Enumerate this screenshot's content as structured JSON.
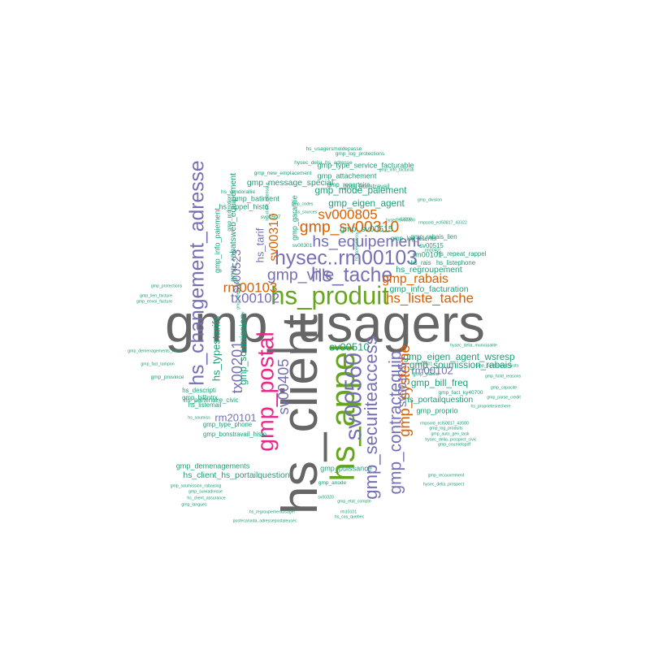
{
  "chart_data": {
    "type": "wordcloud",
    "palette": {
      "gray": "#666666",
      "green": "#66a61e",
      "purple": "#7570b3",
      "orange": "#d95f02",
      "magenta": "#e7298a",
      "teal": "#1b9e77"
    },
    "words": [
      {
        "text": "gmp_usagers",
        "size": 50,
        "color": "gray"
      },
      {
        "text": "hs_client",
        "size": 48,
        "color": "gray"
      },
      {
        "text": "hs_appel",
        "size": 32,
        "color": "green"
      },
      {
        "text": "hs_produit",
        "size": 24,
        "color": "green"
      },
      {
        "text": "gmp_postal",
        "size": 22,
        "color": "magenta"
      },
      {
        "text": "sv00560",
        "size": 22,
        "color": "purple"
      },
      {
        "text": "hysec..rm00103",
        "size": 19,
        "color": "purple"
      },
      {
        "text": "hs_changement_adresse",
        "size": 19,
        "color": "purple"
      },
      {
        "text": "hs_tache",
        "size": 19,
        "color": "purple"
      },
      {
        "text": "gmp_securiteaccess",
        "size": 17,
        "color": "purple"
      },
      {
        "text": "gmp_contractequip",
        "size": 16,
        "color": "purple"
      },
      {
        "text": "gmp_sv00310",
        "size": 15,
        "color": "orange"
      },
      {
        "text": "hs_equipement",
        "size": 15,
        "color": "purple"
      },
      {
        "text": "gmp_ville",
        "size": 15,
        "color": "purple"
      },
      {
        "text": "gmp_systeme",
        "size": 14,
        "color": "orange"
      },
      {
        "text": "tx00201",
        "size": 14,
        "color": "purple"
      },
      {
        "text": "sv00405",
        "size": 14,
        "color": "purple"
      },
      {
        "text": "sv000805",
        "size": 13,
        "color": "orange"
      },
      {
        "text": "rm00103",
        "size": 13,
        "color": "orange"
      },
      {
        "text": "tx00102",
        "size": 13,
        "color": "purple"
      },
      {
        "text": "hs_liste_tache",
        "size": 13,
        "color": "orange"
      },
      {
        "text": "gmp_rabais",
        "size": 12,
        "color": "orange"
      },
      {
        "text": "sv00310",
        "size": 12,
        "color": "orange"
      },
      {
        "text": "sv00105",
        "size": 11,
        "color": "purple"
      },
      {
        "text": "sv00523",
        "size": 11,
        "color": "purple"
      },
      {
        "text": "rm20101",
        "size": 10,
        "color": "purple"
      },
      {
        "text": "hs_tarif",
        "size": 10,
        "color": "purple"
      },
      {
        "text": "rm00102",
        "size": 10,
        "color": "purple"
      },
      {
        "text": "sv00510",
        "size": 10,
        "color": "teal"
      },
      {
        "text": "hs_typestarifs",
        "size": 10,
        "color": "teal"
      },
      {
        "text": "gmp_soumission",
        "size": 9,
        "color": "teal"
      },
      {
        "text": "gmp_eigen_agent",
        "size": 9,
        "color": "teal"
      },
      {
        "text": "gmp_mode_paiement",
        "size": 9,
        "color": "teal"
      },
      {
        "text": "gmp_message_special",
        "size": 8,
        "color": "teal"
      },
      {
        "text": "gmp_soumission_rabais",
        "size": 9,
        "color": "teal"
      },
      {
        "text": "gmp_eigen_agent_wsresp",
        "size": 9,
        "color": "teal"
      },
      {
        "text": "gmp_bill_freq",
        "size": 9,
        "color": "teal"
      },
      {
        "text": "hs_portailquestion",
        "size": 8,
        "color": "teal"
      },
      {
        "text": "hs_client_hs_portailquestion",
        "size": 8,
        "color": "teal"
      },
      {
        "text": "gmp_demenagements",
        "size": 7,
        "color": "teal"
      },
      {
        "text": "gmp_puissance",
        "size": 7,
        "color": "teal"
      },
      {
        "text": "gmp_info_facturation",
        "size": 8,
        "color": "teal"
      },
      {
        "text": "hs_regroupement",
        "size": 8,
        "color": "teal"
      },
      {
        "text": "gmp_sv00515",
        "size": 8,
        "color": "teal"
      },
      {
        "text": "gmp_rabatsweb_equipement",
        "size": 8,
        "color": "teal"
      },
      {
        "text": "gmp_info_paiement",
        "size": 7,
        "color": "teal"
      },
      {
        "text": "gmp_type_service_facturable",
        "size": 7,
        "color": "teal"
      },
      {
        "text": "gmp_attachement",
        "size": 7,
        "color": "teal"
      },
      {
        "text": "gmp_garantie",
        "size": 7,
        "color": "teal"
      },
      {
        "text": "gmp_batiment",
        "size": 7,
        "color": "teal"
      },
      {
        "text": "hs_appel_histo",
        "size": 7,
        "color": "teal"
      },
      {
        "text": "gmp_bonstravail_histo",
        "size": 6,
        "color": "teal"
      },
      {
        "text": "gmp_type_phone",
        "size": 6,
        "color": "teal"
      },
      {
        "text": "hs_descripti",
        "size": 6,
        "color": "teal"
      },
      {
        "text": "gmp_billintrx",
        "size": 6,
        "color": "teal"
      },
      {
        "text": "hs_listemail",
        "size": 6,
        "color": "teal"
      },
      {
        "text": "hs_partenaire_civic",
        "size": 6,
        "color": "teal"
      },
      {
        "text": "gmp_proprio",
        "size": 7,
        "color": "teal"
      },
      {
        "text": "gmp_log_clients",
        "size": 6,
        "color": "teal"
      },
      {
        "text": "gmp_rabais_lien",
        "size": 6,
        "color": "teal"
      },
      {
        "text": "rm00101",
        "size": 7,
        "color": "teal"
      },
      {
        "text": "sv00515",
        "size": 6,
        "color": "teal"
      },
      {
        "text": "hs_repeat_rappel",
        "size": 6,
        "color": "teal"
      },
      {
        "text": "hs_rais",
        "size": 6,
        "color": "teal"
      },
      {
        "text": "hs_listephone",
        "size": 6,
        "color": "teal"
      },
      {
        "text": "gmp_bonstravail",
        "size": 6,
        "color": "teal"
      },
      {
        "text": "gmp_repertoire",
        "size": 6,
        "color": "teal"
      },
      {
        "text": "gmp_new_emplacement",
        "size": 5,
        "color": "teal"
      },
      {
        "text": "gmp_log_protections",
        "size": 5,
        "color": "teal"
      },
      {
        "text": "hysec_delia..hs_adresse",
        "size": 5,
        "color": "teal"
      },
      {
        "text": "hs_usagersmoldepasse",
        "size": 5,
        "color": "teal"
      },
      {
        "text": "gmp_info_facturati",
        "size": 4,
        "color": "teal"
      },
      {
        "text": "hs_vendorallie",
        "size": 5,
        "color": "teal"
      },
      {
        "text": "gmp_promotion",
        "size": 5,
        "color": "teal"
      },
      {
        "text": "gmp_division",
        "size": 4,
        "color": "teal"
      },
      {
        "text": "gmp_codes",
        "size": 4,
        "color": "teal"
      },
      {
        "text": "hs_sources",
        "size": 4,
        "color": "teal"
      },
      {
        "text": "sv00507",
        "size": 5,
        "color": "teal"
      },
      {
        "text": "sv00301",
        "size": 5,
        "color": "teal"
      },
      {
        "text": "hysec..sv00300",
        "size": 4,
        "color": "teal"
      },
      {
        "text": "gmp_telephone",
        "size": 4,
        "color": "teal"
      },
      {
        "text": "gmp_province",
        "size": 5,
        "color": "teal"
      },
      {
        "text": "gmp_demenagements_histo",
        "size": 4,
        "color": "teal"
      },
      {
        "text": "gmp_facl_tampon",
        "size": 4,
        "color": "teal"
      },
      {
        "text": "gmp_envoi_facture",
        "size": 4,
        "color": "teal"
      },
      {
        "text": "gmp_lien_facture",
        "size": 4,
        "color": "teal"
      },
      {
        "text": "gmp_protections",
        "size": 4,
        "color": "teal"
      },
      {
        "text": "hs_soumiss",
        "size": 4,
        "color": "teal"
      },
      {
        "text": "gmp_soumission_rabaislog",
        "size": 4,
        "color": "teal"
      },
      {
        "text": "gmp_suiviadresse",
        "size": 4,
        "color": "teal"
      },
      {
        "text": "hs_client_assurance",
        "size": 4,
        "color": "teal"
      },
      {
        "text": "gmp_langues",
        "size": 4,
        "color": "teal"
      },
      {
        "text": "gmp_anode",
        "size": 5,
        "color": "teal"
      },
      {
        "text": "sv00320",
        "size": 4,
        "color": "teal"
      },
      {
        "text": "gmp_etat_compte",
        "size": 4,
        "color": "teal"
      },
      {
        "text": "hs_regroupementusager",
        "size": 4,
        "color": "teal"
      },
      {
        "text": "rm10101",
        "size": 4,
        "color": "teal"
      },
      {
        "text": "postecanada..adressepostaleusec",
        "size": 4,
        "color": "teal"
      },
      {
        "text": "hs_cas_quebec",
        "size": 4,
        "color": "teal"
      },
      {
        "text": "gmp_recouvrement",
        "size": 4,
        "color": "teal"
      },
      {
        "text": "hysec_delia..prospect",
        "size": 4,
        "color": "teal"
      },
      {
        "text": "gmp_courrielspdf",
        "size": 4,
        "color": "teal"
      },
      {
        "text": "gmp_auto_gen_task",
        "size": 4,
        "color": "teal"
      },
      {
        "text": "gmp_log_produits",
        "size": 4,
        "color": "teal"
      },
      {
        "text": "rmpsold_ecl50817_43580",
        "size": 4,
        "color": "teal"
      },
      {
        "text": "hysec_delia..prospect_civic",
        "size": 4,
        "color": "teal"
      },
      {
        "text": "hs_proprietesrechere",
        "size": 4,
        "color": "teal"
      },
      {
        "text": "gmp_fact_ky40700",
        "size": 5,
        "color": "teal"
      },
      {
        "text": "gmp_parse_credit",
        "size": 4,
        "color": "teal"
      },
      {
        "text": "gmp_capacite",
        "size": 4,
        "color": "teal"
      },
      {
        "text": "gmp_hold_reasons",
        "size": 4,
        "color": "teal"
      },
      {
        "text": "gmp_partenaires_histo",
        "size": 4,
        "color": "teal"
      },
      {
        "text": "gmp_paieu",
        "size": 5,
        "color": "teal"
      },
      {
        "text": "rm10801",
        "size": 4,
        "color": "teal"
      },
      {
        "text": "hysec_delia..municipalite",
        "size": 4,
        "color": "teal"
      },
      {
        "text": "sv03200",
        "size": 4,
        "color": "teal"
      },
      {
        "text": "rmpsold_ecl50817_43322",
        "size": 4,
        "color": "teal"
      },
      {
        "text": "hs_specialisco",
        "size": 4,
        "color": "teal"
      },
      {
        "text": "rm00401",
        "size": 4,
        "color": "teal"
      },
      {
        "text": "hs_client_asterisque",
        "size": 4,
        "color": "teal"
      },
      {
        "text": "hs_tarif_fichier",
        "size": 4,
        "color": "teal"
      }
    ]
  }
}
